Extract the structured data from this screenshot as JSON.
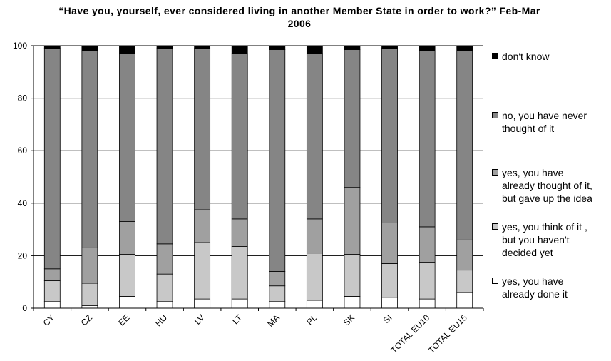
{
  "chart_data": {
    "type": "bar",
    "stacked": true,
    "title": "“Have you, yourself, ever considered living in another Member State in order to work?” Feb-Mar 2006",
    "categories": [
      "CY",
      "CZ",
      "EE",
      "HU",
      "LV",
      "LT",
      "MA",
      "PL",
      "SK",
      "SI",
      "TOTAL EU10",
      "TOTAL EU15"
    ],
    "series": [
      {
        "name": "yes, you have already done it",
        "color": "#ffffff",
        "values": [
          2.5,
          1,
          4.5,
          2.5,
          3.5,
          3.5,
          2.5,
          3,
          4.5,
          4,
          3.5,
          6
        ]
      },
      {
        "name": "yes, you think of it , but you haven't decided yet",
        "color": "#c8c8c8",
        "values": [
          8,
          8.5,
          16,
          10.5,
          21.5,
          20,
          6,
          18,
          16,
          13,
          14,
          8.5
        ]
      },
      {
        "name": "yes, you have already thought of it, but gave up the idea",
        "color": "#a0a0a0",
        "values": [
          4.5,
          13.5,
          12.5,
          11.5,
          12.5,
          10.5,
          5.5,
          13,
          25.5,
          15.5,
          13.5,
          11.5
        ]
      },
      {
        "name": "no, you have never thought of it",
        "color": "#858585",
        "values": [
          84,
          75,
          64,
          74.5,
          61.5,
          63,
          84.5,
          63,
          52.5,
          66.5,
          67,
          72
        ]
      },
      {
        "name": "don't know",
        "color": "#000000",
        "values": [
          1,
          2,
          3,
          1,
          1,
          3,
          1.5,
          3,
          1.5,
          1,
          2,
          2
        ]
      }
    ],
    "ylim": [
      0,
      100
    ],
    "yticks": [
      0,
      20,
      40,
      60,
      80,
      100
    ],
    "grid": true,
    "legend": "right"
  }
}
